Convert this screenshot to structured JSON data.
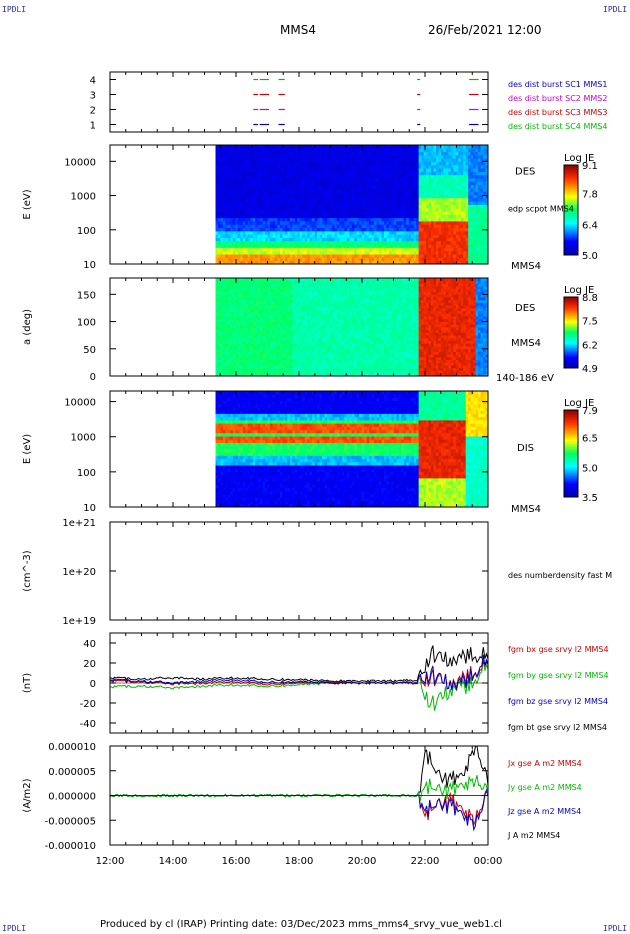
{
  "corner_labels": {
    "top_left": "IPDLI",
    "top_right": "IPDLI",
    "bottom_left": "IPDLI",
    "bottom_right": "IPDLI"
  },
  "header": {
    "spacecraft": "MMS4",
    "datetime": "26/Feb/2021 12:00"
  },
  "footer": {
    "text": "Produced by cl (IRAP)   Printing date: 03/Dec/2023   mms_mms4_srvy_vue_web1.cl"
  },
  "time_axis": {
    "ticks": [
      "12:00",
      "14:00",
      "16:00",
      "18:00",
      "20:00",
      "22:00",
      "00:00"
    ]
  },
  "colors": {
    "mms1": "#0000cc",
    "mms2": "#cc00cc",
    "mms3": "#cc0000",
    "mms4": "#00bb00",
    "bt": "#000000"
  },
  "chart_data": [
    {
      "type": "scatter",
      "id": "burst_availability",
      "ylabel": "",
      "ylim": [
        0.5,
        4.5
      ],
      "yticks": [
        "1",
        "2",
        "3",
        "4"
      ],
      "series": [
        {
          "name": "des dist burst SC1 MMS1",
          "level": 1,
          "color": "#0000cc",
          "intervals": [
            [
              16.55,
              16.7
            ],
            [
              16.75,
              17.05
            ],
            [
              17.35,
              17.55
            ],
            [
              21.75,
              21.85
            ],
            [
              23.4,
              23.7
            ]
          ]
        },
        {
          "name": "des dist burst SC2 MMS2",
          "level": 2,
          "color": "#cc00cc",
          "intervals": [
            [
              16.55,
              16.7
            ],
            [
              16.75,
              17.05
            ],
            [
              17.35,
              17.55
            ],
            [
              21.75,
              21.85
            ],
            [
              23.4,
              23.7
            ]
          ]
        },
        {
          "name": "des dist burst SC3 MMS3",
          "level": 3,
          "color": "#cc0000",
          "intervals": [
            [
              16.55,
              16.7
            ],
            [
              16.75,
              17.05
            ],
            [
              17.35,
              17.55
            ],
            [
              21.75,
              21.85
            ],
            [
              23.4,
              23.7
            ]
          ]
        },
        {
          "name": "des dist burst SC4 MMS4",
          "level": 4,
          "color": "#00bb00",
          "intervals": [
            [
              16.55,
              16.7
            ],
            [
              16.75,
              17.05
            ],
            [
              17.35,
              17.55
            ],
            [
              21.75,
              21.85
            ],
            [
              23.4,
              23.7
            ]
          ]
        }
      ]
    },
    {
      "type": "heatmap",
      "id": "des_energy",
      "ylabel": "E (eV)",
      "yscale": "log",
      "ylim": [
        10,
        30000
      ],
      "yticks": [
        "10",
        "100",
        "1000",
        "10000"
      ],
      "data_start_hour": 15.35,
      "right_labels": [
        "DES",
        "edp scpot MMS4",
        "MMS4"
      ],
      "colorbar": {
        "title": "Log JE",
        "ticks": [
          "5.0",
          "6.4",
          "7.8",
          "9.1"
        ],
        "min": 5.0,
        "max": 9.1
      }
    },
    {
      "type": "heatmap",
      "id": "des_pitch",
      "ylabel": "a (deg)",
      "ylim": [
        0,
        180
      ],
      "yticks": [
        "0",
        "50",
        "100",
        "150"
      ],
      "data_start_hour": 15.35,
      "right_labels": [
        "DES",
        "MMS4",
        "140-186 eV"
      ],
      "colorbar": {
        "title": "Log JE",
        "ticks": [
          "4.9",
          "6.2",
          "7.5",
          "8.8"
        ],
        "min": 4.9,
        "max": 8.8
      }
    },
    {
      "type": "heatmap",
      "id": "dis_energy",
      "ylabel": "E (eV)",
      "yscale": "log",
      "ylim": [
        10,
        20000
      ],
      "yticks": [
        "10",
        "100",
        "1000",
        "10000"
      ],
      "data_start_hour": 15.35,
      "right_labels": [
        "DIS",
        "MMS4"
      ],
      "colorbar": {
        "title": "Log JE",
        "ticks": [
          "3.5",
          "5.0",
          "6.5",
          "7.9"
        ],
        "min": 3.5,
        "max": 7.9
      }
    },
    {
      "type": "line",
      "id": "number_density",
      "ylabel": "(cm^-3)",
      "yscale": "log",
      "ylim": [
        1e+19,
        1e+21
      ],
      "yticks": [
        "1e+19",
        "1e+20",
        "1e+21"
      ],
      "series": [
        {
          "name": "des numberdensity fast M",
          "color": "#000000",
          "values": []
        }
      ]
    },
    {
      "type": "line",
      "id": "magnetic_field",
      "ylabel": "(nT)",
      "ylim": [
        -50,
        50
      ],
      "yticks": [
        "-40",
        "-20",
        "0",
        "20",
        "40"
      ],
      "x": [
        12,
        13,
        14,
        15,
        16,
        17,
        18,
        19,
        20,
        21,
        21.8,
        22.2,
        22.6,
        23.0,
        23.4,
        23.8,
        24.0
      ],
      "series": [
        {
          "name": "fgm bx gse srvy l2 MMS4",
          "color": "#cc0000",
          "values": [
            2,
            1,
            -1,
            0,
            1,
            -1,
            0,
            1,
            0,
            0,
            0,
            6,
            2,
            -3,
            8,
            18,
            20
          ]
        },
        {
          "name": "fgm by gse srvy l2 MMS4",
          "color": "#00bb00",
          "values": [
            -4,
            -3,
            -5,
            -3,
            -2,
            -3,
            -2,
            0,
            0,
            0,
            0,
            -22,
            -12,
            -6,
            -4,
            16,
            14
          ]
        },
        {
          "name": "fgm bz gse srvy l2 MMS4",
          "color": "#0000cc",
          "values": [
            3,
            2,
            0,
            2,
            3,
            1,
            1,
            0,
            0,
            0,
            1,
            10,
            2,
            -5,
            4,
            22,
            18
          ]
        },
        {
          "name": "fgm bt gse srvy l2 MMS4",
          "color": "#000000",
          "values": [
            5,
            4,
            5,
            4,
            5,
            4,
            3,
            2,
            2,
            2,
            3,
            30,
            24,
            20,
            28,
            30,
            24
          ]
        }
      ]
    },
    {
      "type": "line",
      "id": "current_density",
      "ylabel": "(A/m2)",
      "ylim": [
        -1e-05,
        1e-05
      ],
      "yticks": [
        "-0.000010",
        "-0.000005",
        "0.000000",
        "0.000005",
        "0.000010"
      ],
      "x": [
        12,
        14,
        16,
        18,
        20,
        21.8,
        22.0,
        22.4,
        22.8,
        23.2,
        23.6,
        24.0
      ],
      "series": [
        {
          "name": "Jx gse A m2 MMS4",
          "color": "#cc0000",
          "values": [
            0,
            0,
            0,
            0,
            0,
            0,
            -4e-06,
            -2e-06,
            -1e-06,
            -3e-06,
            -5e-06,
            0
          ]
        },
        {
          "name": "Jy gse A m2 MMS4",
          "color": "#00bb00",
          "values": [
            0,
            0,
            0,
            0,
            0,
            0,
            2e-06,
            1e-06,
            1e-06,
            2e-06,
            3e-06,
            0
          ]
        },
        {
          "name": "Jz gse A m2 MMS4",
          "color": "#0000cc",
          "values": [
            0,
            0,
            0,
            0,
            0,
            0,
            -3e-06,
            -2e-06,
            -2e-06,
            -4e-06,
            -6e-06,
            0
          ]
        },
        {
          "name": "J A m2 MMS4",
          "color": "#000000",
          "values": [
            0,
            0,
            0,
            0,
            0,
            0,
            9e-06,
            4e-06,
            3e-06,
            4e-06,
            1e-05,
            2e-06
          ]
        }
      ]
    }
  ]
}
